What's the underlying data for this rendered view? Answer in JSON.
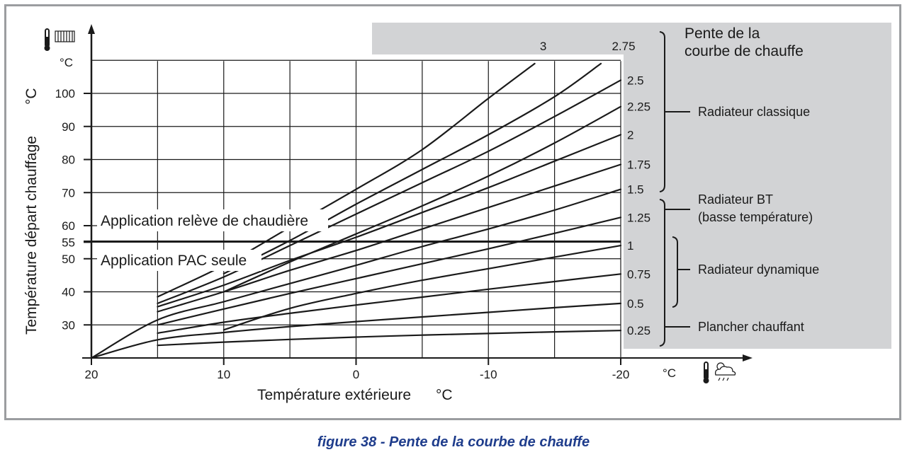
{
  "chart_data": {
    "type": "line",
    "ylabel": "Température départ chauffage",
    "ylabel_unit": "°C",
    "y_unit_label": "°C",
    "xlabel": "Température extérieure",
    "xlabel_unit": "°C",
    "x_unit_label": "°C",
    "xlim": [
      20,
      -20
    ],
    "ylim": [
      20,
      110
    ],
    "x_ticks": [
      "20",
      "10",
      "0",
      "-10",
      "-20"
    ],
    "y_ticks": [
      {
        "value": 30,
        "label": "30"
      },
      {
        "value": 40,
        "label": "40"
      },
      {
        "value": 50,
        "label": "50"
      },
      {
        "value": 55,
        "label": "55"
      },
      {
        "value": 60,
        "label": "60"
      },
      {
        "value": 70,
        "label": "70"
      },
      {
        "value": 80,
        "label": "80"
      },
      {
        "value": 90,
        "label": "90"
      },
      {
        "value": 100,
        "label": "100"
      }
    ],
    "grid_x": [
      20,
      15,
      10,
      5,
      0,
      -5,
      -10,
      -15,
      -20
    ],
    "grid_y": [
      30,
      40,
      50,
      60,
      70,
      80,
      90,
      100,
      110
    ],
    "grid": true,
    "reference_line": {
      "y": 55,
      "label_above": "Application relève de chaudière",
      "label_below": "Application PAC seule"
    },
    "legend_title": "Pente de la courbe de chauffe",
    "series": [
      {
        "name": "0.25",
        "x": [
          15,
          10,
          5,
          0,
          -5,
          -10,
          -15,
          -20
        ],
        "y": [
          23.8,
          24.8,
          25.6,
          26.3,
          26.9,
          27.4,
          27.9,
          28.3
        ]
      },
      {
        "name": "0.5",
        "x": [
          20,
          15,
          10,
          5,
          0,
          -5,
          -10,
          -15,
          -20
        ],
        "y": [
          20,
          25.5,
          27.7,
          29.5,
          31.0,
          32.4,
          33.8,
          35.2,
          36.5
        ]
      },
      {
        "name": "0.75",
        "x": [
          15,
          10,
          5,
          0,
          -5,
          -10,
          -15,
          -20
        ],
        "y": [
          27.5,
          30.8,
          33.5,
          36.0,
          38.4,
          40.8,
          43.1,
          45.4
        ]
      },
      {
        "name": "1",
        "x": [
          10,
          5,
          0,
          -5,
          -10,
          -15,
          -20
        ],
        "y": [
          28.5,
          35.0,
          39.5,
          43.5,
          47.0,
          50.5,
          54.0
        ]
      },
      {
        "name": "1.25",
        "x": [
          15,
          10,
          5,
          0,
          -5,
          -10,
          -15,
          -20
        ],
        "y": [
          30.0,
          34.8,
          39.5,
          44.0,
          48.5,
          53.0,
          57.7,
          62.5
        ]
      },
      {
        "name": "1.5",
        "x": [
          20,
          15,
          10,
          5,
          0,
          -5,
          -10,
          -15,
          -20
        ],
        "y": [
          20,
          31.5,
          37.0,
          42.5,
          48.0,
          53.7,
          59.0,
          64.7,
          71.0
        ]
      },
      {
        "name": "1.75",
        "x": [
          15,
          10,
          5,
          0,
          -5,
          -10,
          -15,
          -20
        ],
        "y": [
          34.0,
          40.0,
          46.5,
          52.5,
          59.0,
          65.5,
          72.0,
          78.5
        ]
      },
      {
        "name": "2",
        "x": [
          15,
          10,
          5,
          0,
          -5,
          -10,
          -15,
          -20
        ],
        "y": [
          35.5,
          42.0,
          49.5,
          56.5,
          64.0,
          71.5,
          79.5,
          87.5
        ]
      },
      {
        "name": "2.25",
        "x": [
          10,
          5,
          0,
          -5,
          -10,
          -15,
          -20
        ],
        "y": [
          40.0,
          49.0,
          57.5,
          66.0,
          75.0,
          85.0,
          96.0
        ]
      },
      {
        "name": "2.5",
        "x": [
          15,
          10,
          5,
          0,
          -5,
          -10,
          -15,
          -20
        ],
        "y": [
          36.5,
          44.5,
          54.0,
          63.5,
          73.0,
          82.5,
          93.0,
          104.0
        ]
      },
      {
        "name": "2.75",
        "x": [
          10,
          5,
          0,
          -5,
          -10,
          -15,
          -18.5
        ],
        "y": [
          45.5,
          55.5,
          66.5,
          77.0,
          87.5,
          99.0,
          109.0
        ]
      },
      {
        "name": "3",
        "x": [
          15,
          10,
          5,
          0,
          -5,
          -10,
          -13.5
        ],
        "y": [
          38.5,
          48.0,
          59.5,
          71.0,
          83.0,
          98.5,
          109.0
        ]
      }
    ],
    "groups": [
      {
        "label": "Radiateur classique",
        "from": "1.5",
        "to": "2.75"
      },
      {
        "label": "Radiateur BT\n(basse température)",
        "from": "0.25",
        "to": "1.25"
      },
      {
        "label": "Radiateur dynamique",
        "from": "0.5",
        "to": "1"
      },
      {
        "label": "Plancher chauffant",
        "from": "0.25",
        "to": "0.5"
      }
    ],
    "caption": "figure 38 - Pente de la courbe de chauffe",
    "colors": {
      "curves": "#1a1a1a",
      "grid": "#1a1a1a",
      "panel": "#d2d3d5",
      "frame": "#9b9da0",
      "caption": "#1f3d8c"
    },
    "icons": {
      "y_axis": "thermometer-radiator-icon",
      "x_axis": "thermometer-weather-icon"
    }
  },
  "legend": {
    "title_line1": "Pente de la",
    "title_line2": "courbe de chauffe",
    "group_classique": "Radiateur classique",
    "group_bt_line1": "Radiateur BT",
    "group_bt_line2": "(basse température)",
    "group_dynamique": "Radiateur dynamique",
    "group_plancher": "Plancher chauffant"
  }
}
